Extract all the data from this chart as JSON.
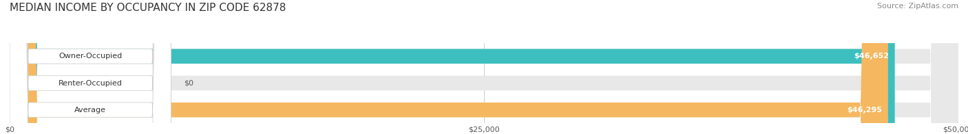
{
  "title": "MEDIAN INCOME BY OCCUPANCY IN ZIP CODE 62878",
  "source": "Source: ZipAtlas.com",
  "categories": [
    "Owner-Occupied",
    "Renter-Occupied",
    "Average"
  ],
  "values": [
    46652,
    0,
    46295
  ],
  "bar_colors": [
    "#3dbfbf",
    "#c8a8d8",
    "#f5b860"
  ],
  "bar_bg_color": "#e8e8e8",
  "value_labels": [
    "$46,652",
    "$0",
    "$46,295"
  ],
  "xlim": [
    0,
    50000
  ],
  "xticks": [
    0,
    25000,
    50000
  ],
  "xtick_labels": [
    "$0",
    "$25,000",
    "$50,000"
  ],
  "title_fontsize": 11,
  "source_fontsize": 8,
  "label_fontsize": 8,
  "value_fontsize": 8,
  "bar_height": 0.55,
  "background_color": "#ffffff"
}
